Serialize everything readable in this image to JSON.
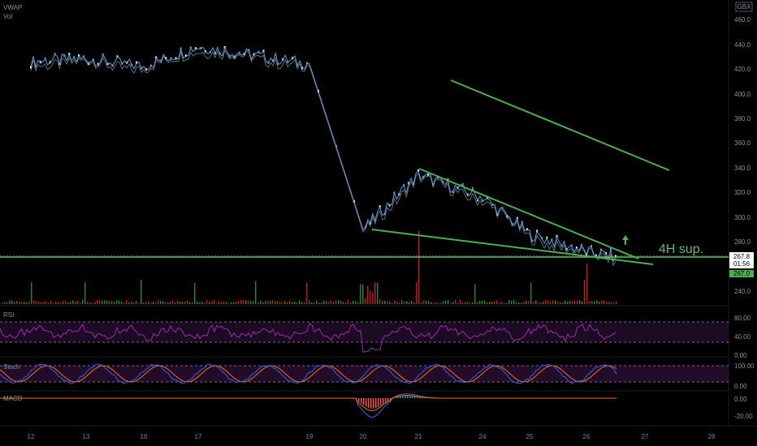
{
  "header": {
    "indicator_label": "VWAP",
    "volume_label": "Vol",
    "currency": "GBX"
  },
  "price_axis": {
    "ticks": [
      "460.0",
      "440.0",
      "420.0",
      "400.0",
      "380.0",
      "360.0",
      "340.0",
      "320.0",
      "300.0",
      "280.0",
      "240.0"
    ],
    "current_price": "267.8",
    "countdown": "01:56",
    "support_price": "267.0"
  },
  "x_axis": {
    "ticks": [
      "12",
      "13",
      "16",
      "17",
      "19",
      "20",
      "21",
      "24",
      "25",
      "26",
      "27",
      "28"
    ]
  },
  "annotation": {
    "support_label": "4H sup.",
    "arrow": "up-arrow-icon"
  },
  "panes": {
    "rsi": {
      "label": "RSI",
      "ticks": [
        "80.00",
        "40.00",
        "0.00"
      ]
    },
    "stoch": {
      "label": "Stoch",
      "ticks": [
        "100.00",
        "0.00"
      ]
    },
    "macd": {
      "label": "MACD",
      "ticks": [
        "0.00",
        "-20.00"
      ]
    }
  },
  "colors": {
    "background": "#000000",
    "candle": "#5b9bd5",
    "trendline": "#4caf50",
    "support": "#66bb6a",
    "rsi": "#9c27b0",
    "stoch_k": "#2962ff",
    "stoch_d": "#ff6d00"
  },
  "chart_data": {
    "type": "line",
    "title": "",
    "y_unit": "GBX",
    "ylim": [
      230,
      465
    ],
    "x_categories": [
      "12",
      "13",
      "16",
      "17",
      "19",
      "20",
      "21",
      "24",
      "25",
      "26",
      "27",
      "28"
    ],
    "price_series": [
      {
        "x": "12",
        "y": 426
      },
      {
        "x": "13",
        "y": 428
      },
      {
        "x": "16",
        "y": 422
      },
      {
        "x": "17",
        "y": 438
      },
      {
        "x": "19",
        "y": 424
      },
      {
        "x": "20",
        "y": 290
      },
      {
        "x": "21",
        "y": 334
      },
      {
        "x": "24",
        "y": 316
      },
      {
        "x": "25",
        "y": 286
      },
      {
        "x": "26",
        "y": 272
      },
      {
        "x": "26.5",
        "y": 267.8
      }
    ],
    "trendlines": [
      {
        "name": "upper-channel",
        "from": {
          "x": "23",
          "y": 412
        },
        "to": {
          "x": "27.5",
          "y": 339
        }
      },
      {
        "name": "wedge-top",
        "from": {
          "x": "20.9",
          "y": 339
        },
        "to": {
          "x": "27.1",
          "y": 270
        }
      },
      {
        "name": "wedge-bottom",
        "from": {
          "x": "20",
          "y": 290
        },
        "to": {
          "x": "27.3",
          "y": 263
        }
      }
    ],
    "support_level": 267.0,
    "last_price": 267.8,
    "grid": false
  }
}
